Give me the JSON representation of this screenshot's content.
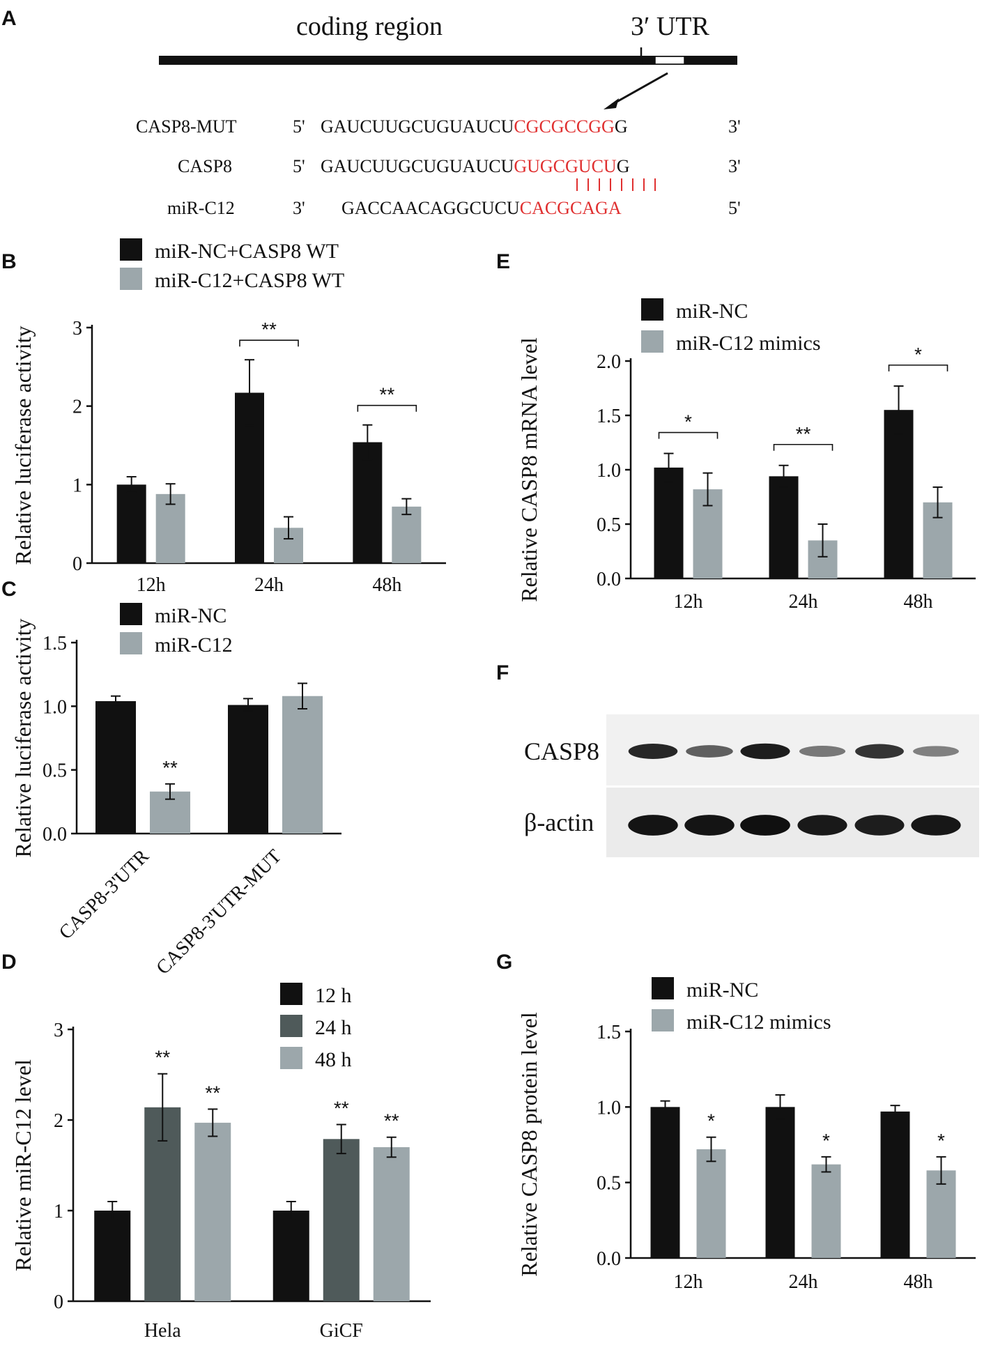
{
  "panels": {
    "A": {
      "letter": "A",
      "coding_label": "coding region",
      "utr_label": "3′ UTR",
      "rows": [
        {
          "name": "CASP8-MUT",
          "left": "5'",
          "prefix": "GAUCUUGCUGUAUCU",
          "site": "CGCGCCGG",
          "suffix": "G",
          "right": "3'"
        },
        {
          "name": "CASP8",
          "left": "5'",
          "prefix": "GAUCUUGCUGUAUCU",
          "site": "GUGCGUCU",
          "suffix": "G",
          "right": "3'"
        },
        {
          "name": "miR-C12",
          "left": "3'",
          "prefix": "GACCAACAGGCUCU",
          "site": "CACGCAGA",
          "suffix": "",
          "right": "5'"
        }
      ]
    },
    "F": {
      "letter": "F",
      "bands": [
        {
          "name": "CASP8",
          "intensities": [
            0.85,
            0.55,
            0.9,
            0.42,
            0.78,
            0.38
          ]
        },
        {
          "name": "β-actin",
          "intensities": [
            0.95,
            0.95,
            0.97,
            0.92,
            0.9,
            0.93
          ]
        }
      ]
    }
  },
  "colors": {
    "black": "#111111",
    "dark_gray": "#4f5a5a",
    "light_gray": "#9ca7ab",
    "red": "#e03030"
  },
  "chart_data": [
    {
      "id": "B",
      "letter": "B",
      "type": "bar",
      "ylabel": "Relative luciferase activity",
      "ylim": [
        0,
        3
      ],
      "yticks": [
        "0",
        "1",
        "2",
        "3"
      ],
      "categories": [
        "12h",
        "24h",
        "48h"
      ],
      "series": [
        {
          "name": "miR-NC+CASP8 WT",
          "color": "#111111",
          "values": [
            1.0,
            2.17,
            1.54
          ],
          "errors": [
            0.1,
            0.42,
            0.22
          ]
        },
        {
          "name": "miR-C12+CASP8 WT",
          "color": "#9ca7ab",
          "values": [
            0.88,
            0.45,
            0.72
          ],
          "errors": [
            0.13,
            0.14,
            0.1
          ]
        }
      ],
      "significance": [
        {
          "group": 1,
          "text": "**"
        },
        {
          "group": 2,
          "text": "**"
        }
      ],
      "legend": "top-left"
    },
    {
      "id": "C",
      "letter": "C",
      "type": "bar",
      "ylabel": "Relative luciferase activity",
      "ylim": [
        0,
        1.5
      ],
      "yticks": [
        "0.0",
        "0.5",
        "1.0",
        "1.5"
      ],
      "categories": [
        "CASP8-3'UTR",
        "CASP8-3'UTR-MUT"
      ],
      "series": [
        {
          "name": "miR-NC",
          "color": "#111111",
          "values": [
            1.04,
            1.01
          ],
          "errors": [
            0.04,
            0.05
          ]
        },
        {
          "name": "miR-C12",
          "color": "#9ca7ab",
          "values": [
            0.33,
            1.08
          ],
          "errors": [
            0.06,
            0.1
          ]
        }
      ],
      "bar_labels": [
        {
          "group": 0,
          "series": 1,
          "text": "**"
        }
      ],
      "legend": "top-left"
    },
    {
      "id": "D",
      "letter": "D",
      "type": "bar",
      "ylabel": "Relative miR-C12 level",
      "ylim": [
        0,
        3
      ],
      "yticks": [
        "0",
        "1",
        "2",
        "3"
      ],
      "categories": [
        "Hela",
        "GiCF"
      ],
      "series": [
        {
          "name": "12 h",
          "color": "#111111",
          "values": [
            1.0,
            1.0
          ],
          "errors": [
            0.1,
            0.1
          ]
        },
        {
          "name": "24 h",
          "color": "#4f5a5a",
          "values": [
            2.14,
            1.79
          ],
          "errors": [
            0.37,
            0.16
          ]
        },
        {
          "name": "48 h",
          "color": "#9ca7ab",
          "values": [
            1.97,
            1.7
          ],
          "errors": [
            0.15,
            0.11
          ]
        }
      ],
      "bar_labels": [
        {
          "group": 0,
          "series": 1,
          "text": "**"
        },
        {
          "group": 0,
          "series": 2,
          "text": "**"
        },
        {
          "group": 1,
          "series": 1,
          "text": "**"
        },
        {
          "group": 1,
          "series": 2,
          "text": "**"
        }
      ],
      "legend": "top-right"
    },
    {
      "id": "E",
      "letter": "E",
      "type": "bar",
      "ylabel": "Relative CASP8 mRNA level",
      "ylim": [
        0,
        2.0
      ],
      "yticks": [
        "0.0",
        "0.5",
        "1.0",
        "1.5",
        "2.0"
      ],
      "categories": [
        "12h",
        "24h",
        "48h"
      ],
      "series": [
        {
          "name": "miR-NC",
          "color": "#111111",
          "values": [
            1.02,
            0.94,
            1.55
          ],
          "errors": [
            0.13,
            0.1,
            0.22
          ]
        },
        {
          "name": "miR-C12 mimics",
          "color": "#9ca7ab",
          "values": [
            0.82,
            0.35,
            0.7
          ],
          "errors": [
            0.15,
            0.15,
            0.14
          ]
        }
      ],
      "significance": [
        {
          "group": 0,
          "text": "*"
        },
        {
          "group": 1,
          "text": "**"
        },
        {
          "group": 2,
          "text": "*"
        }
      ],
      "legend": "top-left"
    },
    {
      "id": "G",
      "letter": "G",
      "type": "bar",
      "ylabel": "Relative CASP8 protein  level",
      "ylim": [
        0,
        1.5
      ],
      "yticks": [
        "0.0",
        "0.5",
        "1.0",
        "1.5"
      ],
      "categories": [
        "12h",
        "24h",
        "48h"
      ],
      "series": [
        {
          "name": "miR-NC",
          "color": "#111111",
          "values": [
            1.0,
            1.0,
            0.97
          ],
          "errors": [
            0.04,
            0.08,
            0.04
          ]
        },
        {
          "name": "miR-C12 mimics",
          "color": "#9ca7ab",
          "values": [
            0.72,
            0.62,
            0.58
          ],
          "errors": [
            0.08,
            0.05,
            0.09
          ]
        }
      ],
      "bar_labels": [
        {
          "group": 0,
          "series": 1,
          "text": "*"
        },
        {
          "group": 1,
          "series": 1,
          "text": "*"
        },
        {
          "group": 2,
          "series": 1,
          "text": "*"
        }
      ],
      "legend": "top-left"
    }
  ]
}
